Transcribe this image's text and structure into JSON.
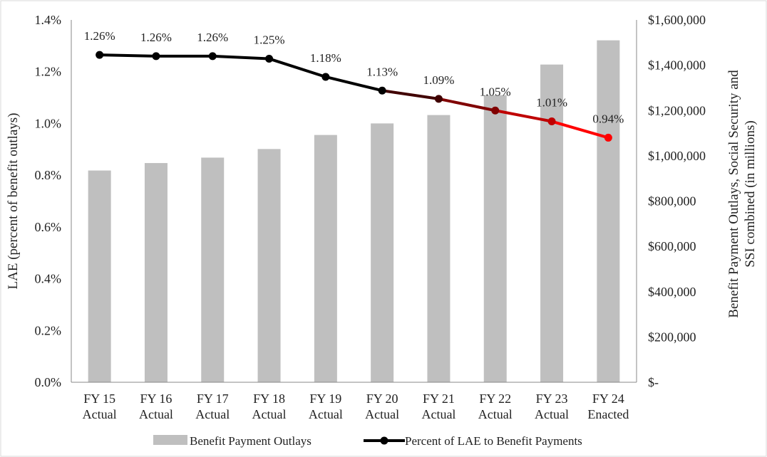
{
  "chart_data": {
    "type": "bar+line",
    "title": "",
    "categories": [
      [
        "FY 15",
        "Actual"
      ],
      [
        "FY 16",
        "Actual"
      ],
      [
        "FY 17",
        "Actual"
      ],
      [
        "FY 18",
        "Actual"
      ],
      [
        "FY 19",
        "Actual"
      ],
      [
        "FY 20",
        "Actual"
      ],
      [
        "FY 21",
        "Actual"
      ],
      [
        "FY 22",
        "Actual"
      ],
      [
        "FY 23",
        "Actual"
      ],
      [
        "FY 24",
        "Enacted"
      ]
    ],
    "series": [
      {
        "name": "Benefit Payment Outlays",
        "type": "bar",
        "axis": "right",
        "color": "#bfbfbf",
        "values": [
          935000,
          968000,
          992000,
          1030000,
          1092000,
          1143000,
          1180000,
          1268000,
          1403000,
          1510000
        ]
      },
      {
        "name": "Percent of LAE to Benefit Payments",
        "type": "line",
        "axis": "left",
        "color": "#000000",
        "trend_end_color": "#ff0000",
        "values": [
          1.26,
          1.26,
          1.26,
          1.25,
          1.18,
          1.13,
          1.09,
          1.05,
          1.01,
          0.94
        ],
        "data_labels": [
          "1.26%",
          "1.26%",
          "1.26%",
          "1.25%",
          "1.18%",
          "1.13%",
          "1.09%",
          "1.05%",
          "1.01%",
          "0.94%"
        ],
        "plotted_values": [
          1.265,
          1.26,
          1.26,
          1.25,
          1.18,
          1.127,
          1.095,
          1.05,
          1.008,
          0.945
        ]
      }
    ],
    "y_left": {
      "label": "LAE (percent of benefit outlays)",
      "lim": [
        0,
        1.4
      ],
      "ticks": [
        0,
        0.2,
        0.4,
        0.6,
        0.8,
        1.0,
        1.2,
        1.4
      ],
      "tick_labels": [
        "0.0%",
        "0.2%",
        "0.4%",
        "0.6%",
        "0.8%",
        "1.0%",
        "1.2%",
        "1.4%"
      ]
    },
    "y_right": {
      "label_lines": [
        "Benefit Payment Outlays, Social Security and",
        "SSI combined (in millions)"
      ],
      "lim": [
        0,
        1600000
      ],
      "ticks": [
        0,
        200000,
        400000,
        600000,
        800000,
        1000000,
        1200000,
        1400000,
        1600000
      ],
      "tick_labels": [
        "$-",
        "$200,000",
        "$400,000",
        "$600,000",
        "$800,000",
        "$1,000,000",
        "$1,200,000",
        "$1,400,000",
        "$1,600,000"
      ]
    },
    "grid": false,
    "legend": {
      "position": "bottom",
      "items": [
        "Benefit Payment Outlays",
        "Percent of LAE to Benefit Payments"
      ]
    }
  }
}
